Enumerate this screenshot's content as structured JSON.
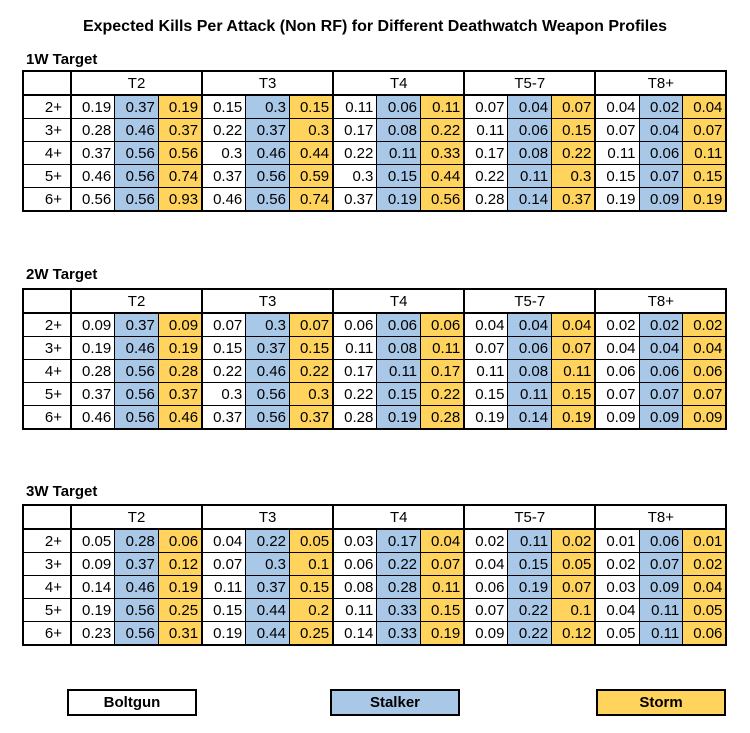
{
  "chart_data": {
    "type": "table",
    "title": "Expected Kills Per Attack (Non RF) for Different Deathwatch Weapon Profiles",
    "columns": [
      "T2",
      "T3",
      "T4",
      "T5-7",
      "T8+"
    ],
    "rows": [
      "2+",
      "3+",
      "4+",
      "5+",
      "6+"
    ],
    "legend": [
      {
        "name": "Boltgun",
        "color": "#ffffff"
      },
      {
        "name": "Stalker",
        "color": "#a9c7e6"
      },
      {
        "name": "Storm",
        "color": "#ffd35c"
      }
    ],
    "sections": [
      {
        "title": "1W Target",
        "values": [
          [
            "0.19",
            "0.37",
            "0.19",
            "0.15",
            "0.3",
            "0.15",
            "0.11",
            "0.06",
            "0.11",
            "0.07",
            "0.04",
            "0.07",
            "0.04",
            "0.02",
            "0.04"
          ],
          [
            "0.28",
            "0.46",
            "0.37",
            "0.22",
            "0.37",
            "0.3",
            "0.17",
            "0.08",
            "0.22",
            "0.11",
            "0.06",
            "0.15",
            "0.07",
            "0.04",
            "0.07"
          ],
          [
            "0.37",
            "0.56",
            "0.56",
            "0.3",
            "0.46",
            "0.44",
            "0.22",
            "0.11",
            "0.33",
            "0.17",
            "0.08",
            "0.22",
            "0.11",
            "0.06",
            "0.11"
          ],
          [
            "0.46",
            "0.56",
            "0.74",
            "0.37",
            "0.56",
            "0.59",
            "0.3",
            "0.15",
            "0.44",
            "0.22",
            "0.11",
            "0.3",
            "0.15",
            "0.07",
            "0.15"
          ],
          [
            "0.56",
            "0.56",
            "0.93",
            "0.46",
            "0.56",
            "0.74",
            "0.37",
            "0.19",
            "0.56",
            "0.28",
            "0.14",
            "0.37",
            "0.19",
            "0.09",
            "0.19"
          ]
        ]
      },
      {
        "title": "2W Target",
        "values": [
          [
            "0.09",
            "0.37",
            "0.09",
            "0.07",
            "0.3",
            "0.07",
            "0.06",
            "0.06",
            "0.06",
            "0.04",
            "0.04",
            "0.04",
            "0.02",
            "0.02",
            "0.02"
          ],
          [
            "0.19",
            "0.46",
            "0.19",
            "0.15",
            "0.37",
            "0.15",
            "0.11",
            "0.08",
            "0.11",
            "0.07",
            "0.06",
            "0.07",
            "0.04",
            "0.04",
            "0.04"
          ],
          [
            "0.28",
            "0.56",
            "0.28",
            "0.22",
            "0.46",
            "0.22",
            "0.17",
            "0.11",
            "0.17",
            "0.11",
            "0.08",
            "0.11",
            "0.06",
            "0.06",
            "0.06"
          ],
          [
            "0.37",
            "0.56",
            "0.37",
            "0.3",
            "0.56",
            "0.3",
            "0.22",
            "0.15",
            "0.22",
            "0.15",
            "0.11",
            "0.15",
            "0.07",
            "0.07",
            "0.07"
          ],
          [
            "0.46",
            "0.56",
            "0.46",
            "0.37",
            "0.56",
            "0.37",
            "0.28",
            "0.19",
            "0.28",
            "0.19",
            "0.14",
            "0.19",
            "0.09",
            "0.09",
            "0.09"
          ]
        ]
      },
      {
        "title": "3W Target",
        "values": [
          [
            "0.05",
            "0.28",
            "0.06",
            "0.04",
            "0.22",
            "0.05",
            "0.03",
            "0.17",
            "0.04",
            "0.02",
            "0.11",
            "0.02",
            "0.01",
            "0.06",
            "0.01"
          ],
          [
            "0.09",
            "0.37",
            "0.12",
            "0.07",
            "0.3",
            "0.1",
            "0.06",
            "0.22",
            "0.07",
            "0.04",
            "0.15",
            "0.05",
            "0.02",
            "0.07",
            "0.02"
          ],
          [
            "0.14",
            "0.46",
            "0.19",
            "0.11",
            "0.37",
            "0.15",
            "0.08",
            "0.28",
            "0.11",
            "0.06",
            "0.19",
            "0.07",
            "0.03",
            "0.09",
            "0.04"
          ],
          [
            "0.19",
            "0.56",
            "0.25",
            "0.15",
            "0.44",
            "0.2",
            "0.11",
            "0.33",
            "0.15",
            "0.07",
            "0.22",
            "0.1",
            "0.04",
            "0.11",
            "0.05"
          ],
          [
            "0.23",
            "0.56",
            "0.31",
            "0.19",
            "0.44",
            "0.25",
            "0.14",
            "0.33",
            "0.19",
            "0.09",
            "0.22",
            "0.12",
            "0.05",
            "0.11",
            "0.06"
          ]
        ]
      }
    ]
  }
}
